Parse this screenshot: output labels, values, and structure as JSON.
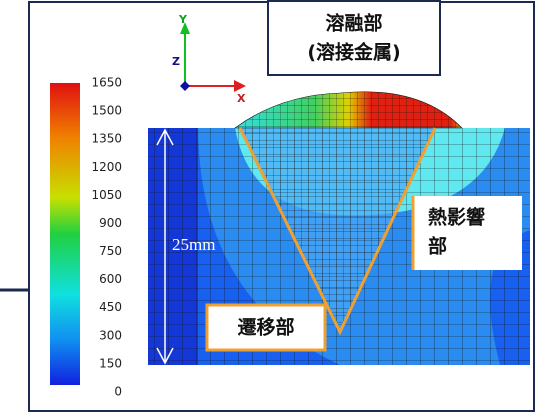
{
  "colorbar": {
    "ticks": [
      1650,
      1500,
      1350,
      1200,
      1050,
      900,
      750,
      600,
      450,
      300,
      150,
      0
    ]
  },
  "axes": {
    "y": "Y",
    "z": "Z",
    "x": "X"
  },
  "dimension": "25mm",
  "callouts": {
    "fusion_zone": {
      "line1": "溶融部",
      "line2": "(溶接金属)"
    },
    "haz": {
      "line1": "熱影響",
      "line2": "部"
    },
    "transition": "遷移部"
  }
}
